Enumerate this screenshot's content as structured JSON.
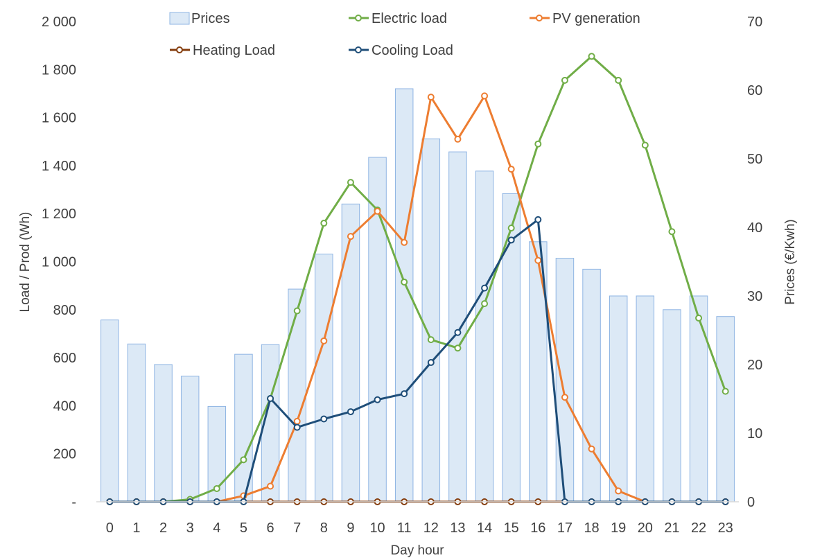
{
  "chart_data": {
    "type": "bar+line",
    "x": [
      0,
      1,
      2,
      3,
      4,
      5,
      6,
      7,
      8,
      9,
      10,
      11,
      12,
      13,
      14,
      15,
      16,
      17,
      18,
      19,
      20,
      21,
      22,
      23
    ],
    "xlabel": "Day hour",
    "ylabel_left": "Load / Prod (Wh)",
    "ylabel_right": "Prices (€/Kwh)",
    "ylim_left": [
      0,
      2000
    ],
    "ylim_right": [
      0,
      70
    ],
    "yticks_left": [
      "-",
      "200",
      "400",
      "600",
      "800",
      "1 000",
      "1 200",
      "1 400",
      "1 600",
      "1 800",
      "2 000"
    ],
    "yticks_right": [
      "0",
      "10",
      "20",
      "30",
      "40",
      "50",
      "60",
      "70"
    ],
    "legend_position": "top",
    "grid": false,
    "bars": {
      "name": "Prices",
      "axis": "right",
      "color": "#DCE9F6",
      "edge": "#8EB4E3",
      "values": [
        26.5,
        23,
        20,
        18.3,
        13.9,
        21.5,
        22.9,
        31,
        36.1,
        43.4,
        50.2,
        60.2,
        52.9,
        51,
        48.2,
        44.9,
        37.9,
        35.5,
        33.9,
        30,
        30,
        28,
        30,
        27
      ]
    },
    "series": [
      {
        "name": "Electric load",
        "axis": "left",
        "color": "#70AD47",
        "values": [
          0,
          0,
          0,
          10,
          55,
          175,
          430,
          795,
          1160,
          1330,
          1215,
          915,
          675,
          640,
          825,
          1140,
          1490,
          1755,
          1855,
          1755,
          1485,
          1125,
          765,
          460
        ]
      },
      {
        "name": "PV generation",
        "axis": "left",
        "color": "#ED7D31",
        "values": [
          0,
          0,
          0,
          0,
          0,
          25,
          65,
          335,
          670,
          1105,
          1210,
          1080,
          1685,
          1510,
          1690,
          1385,
          1005,
          435,
          220,
          45,
          0,
          0,
          0,
          0
        ]
      },
      {
        "name": "Heating Load",
        "axis": "left",
        "color": "#843C0C",
        "values": [
          0,
          0,
          0,
          0,
          0,
          0,
          0,
          0,
          0,
          0,
          0,
          0,
          0,
          0,
          0,
          0,
          0,
          0,
          0,
          0,
          0,
          0,
          0,
          0
        ]
      },
      {
        "name": "Cooling Load",
        "axis": "left",
        "color": "#1F4E79",
        "values": [
          0,
          0,
          0,
          0,
          0,
          0,
          430,
          310,
          345,
          375,
          425,
          450,
          580,
          705,
          890,
          1090,
          1175,
          0,
          0,
          0,
          0,
          0,
          0,
          0
        ]
      }
    ]
  }
}
